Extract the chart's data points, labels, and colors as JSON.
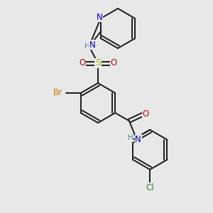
{
  "bg_color": "#e8e8e8",
  "bond_color": "#1a1a1a",
  "bond_lw": 1.4,
  "colors": {
    "N": "#0000cc",
    "O": "#cc0000",
    "S": "#b8b800",
    "Br": "#cc7700",
    "Cl": "#338833",
    "H_label": "#4a8a8a"
  },
  "font_size": 8.5,
  "font_size_small": 7.5
}
